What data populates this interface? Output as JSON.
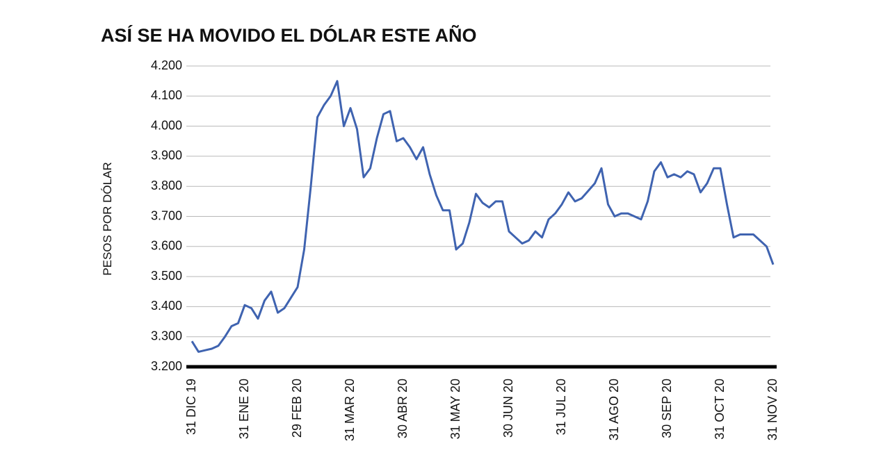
{
  "chart_data": {
    "type": "line",
    "title": "ASÍ SE HA MOVIDO EL DÓLAR ESTE AÑO",
    "y_label": "PESOS POR DÓLAR",
    "categories": [
      "31 DIC 19",
      null,
      null,
      null,
      null,
      null,
      null,
      null,
      "31 ENE 20",
      null,
      null,
      null,
      null,
      null,
      null,
      null,
      "29 FEB 20",
      null,
      null,
      null,
      null,
      null,
      null,
      null,
      "31 MAR 20",
      null,
      null,
      null,
      null,
      null,
      null,
      null,
      "30 ABR 20",
      null,
      null,
      null,
      null,
      null,
      null,
      null,
      "31 MAY 20",
      null,
      null,
      null,
      null,
      null,
      null,
      null,
      "30 JUN 20",
      null,
      null,
      null,
      null,
      null,
      null,
      null,
      "31 JUL 20",
      null,
      null,
      null,
      null,
      null,
      null,
      null,
      "31 AGO 20",
      null,
      null,
      null,
      null,
      null,
      null,
      null,
      "30 SEP 20",
      null,
      null,
      null,
      null,
      null,
      null,
      null,
      "31 OCT 20",
      null,
      null,
      null,
      null,
      null,
      null,
      null,
      "31 NOV 20"
    ],
    "values": [
      3285,
      3250,
      3255,
      3260,
      3270,
      3300,
      3335,
      3345,
      3405,
      3395,
      3360,
      3420,
      3450,
      3380,
      3395,
      3430,
      3465,
      3590,
      3800,
      4030,
      4070,
      4100,
      4150,
      4000,
      4060,
      3990,
      3830,
      3860,
      3960,
      4040,
      4050,
      3950,
      3960,
      3930,
      3890,
      3930,
      3840,
      3770,
      3720,
      3720,
      3590,
      3610,
      3680,
      3775,
      3745,
      3730,
      3750,
      3750,
      3650,
      3630,
      3610,
      3620,
      3650,
      3630,
      3690,
      3710,
      3740,
      3780,
      3750,
      3760,
      3785,
      3810,
      3860,
      3740,
      3700,
      3710,
      3710,
      3700,
      3690,
      3750,
      3850,
      3880,
      3830,
      3840,
      3830,
      3850,
      3840,
      3780,
      3810,
      3860,
      3860,
      3740,
      3630,
      3640,
      3640,
      3640,
      3620,
      3600,
      3540
    ],
    "color": "#3f63b0",
    "ylim": [
      3200,
      4200
    ],
    "yticks": [
      {
        "value": 3200,
        "label": "3.200"
      },
      {
        "value": 3300,
        "label": "3.300"
      },
      {
        "value": 3400,
        "label": "3.400"
      },
      {
        "value": 3500,
        "label": "3.500"
      },
      {
        "value": 3600,
        "label": "3.600"
      },
      {
        "value": 3700,
        "label": "3.700"
      },
      {
        "value": 3800,
        "label": "3.800"
      },
      {
        "value": 3900,
        "label": "3.900"
      },
      {
        "value": 4000,
        "label": "4.000"
      },
      {
        "value": 4100,
        "label": "4.100"
      },
      {
        "value": 4200,
        "label": "4.200"
      }
    ],
    "grid": true
  }
}
